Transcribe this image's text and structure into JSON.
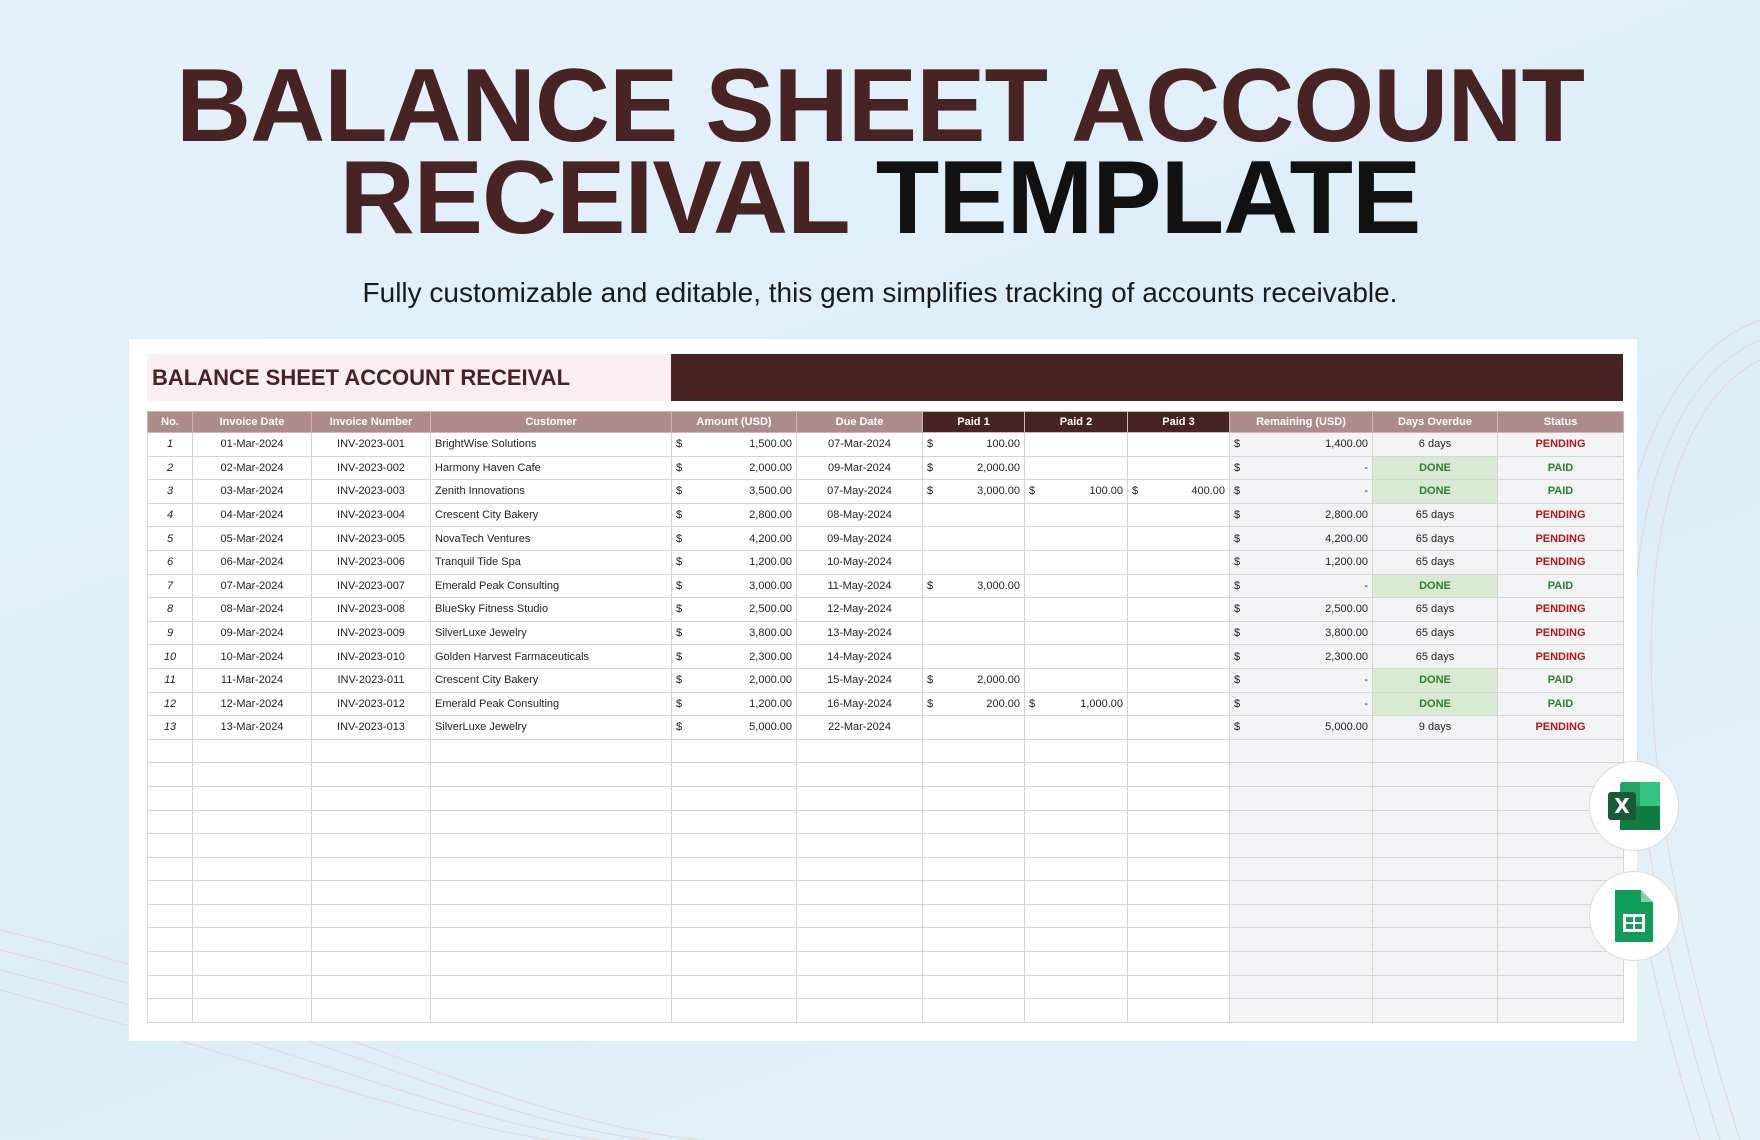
{
  "title": {
    "line1": "BALANCE SHEET ACCOUNT",
    "line2a": "RECEIVAL",
    "line2b": "TEMPLATE"
  },
  "subtitle": "Fully customizable and editable, this gem simplifies tracking of accounts receivable.",
  "sheet": {
    "title": "BALANCE SHEET ACCOUNT RECEIVAL",
    "headers": [
      "No.",
      "Invoice Date",
      "Invoice Number",
      "Customer",
      "Amount (USD)",
      "Due Date",
      "Paid 1",
      "Paid 2",
      "Paid 3",
      "Remaining (USD)",
      "Days Overdue",
      "Status"
    ],
    "currency": "$",
    "rows": [
      [
        "1",
        "01-Mar-2024",
        "INV-2023-001",
        "BrightWise Solutions",
        "1,500.00",
        "07-Mar-2024",
        "100.00",
        "",
        "",
        "1,400.00",
        "6 days",
        "PENDING"
      ],
      [
        "2",
        "02-Mar-2024",
        "INV-2023-002",
        "Harmony Haven Cafe",
        "2,000.00",
        "09-Mar-2024",
        "2,000.00",
        "",
        "",
        "-",
        "DONE",
        "PAID"
      ],
      [
        "3",
        "03-Mar-2024",
        "INV-2023-003",
        "Zenith Innovations",
        "3,500.00",
        "07-May-2024",
        "3,000.00",
        "100.00",
        "400.00",
        "-",
        "DONE",
        "PAID"
      ],
      [
        "4",
        "04-Mar-2024",
        "INV-2023-004",
        "Crescent City Bakery",
        "2,800.00",
        "08-May-2024",
        "",
        "",
        "",
        "2,800.00",
        "65 days",
        "PENDING"
      ],
      [
        "5",
        "05-Mar-2024",
        "INV-2023-005",
        "NovaTech Ventures",
        "4,200.00",
        "09-May-2024",
        "",
        "",
        "",
        "4,200.00",
        "65 days",
        "PENDING"
      ],
      [
        "6",
        "06-Mar-2024",
        "INV-2023-006",
        "Tranquil Tide Spa",
        "1,200.00",
        "10-May-2024",
        "",
        "",
        "",
        "1,200.00",
        "65 days",
        "PENDING"
      ],
      [
        "7",
        "07-Mar-2024",
        "INV-2023-007",
        "Emerald Peak Consulting",
        "3,000.00",
        "11-May-2024",
        "3,000.00",
        "",
        "",
        "-",
        "DONE",
        "PAID"
      ],
      [
        "8",
        "08-Mar-2024",
        "INV-2023-008",
        "BlueSky Fitness Studio",
        "2,500.00",
        "12-May-2024",
        "",
        "",
        "",
        "2,500.00",
        "65 days",
        "PENDING"
      ],
      [
        "9",
        "09-Mar-2024",
        "INV-2023-009",
        "SilverLuxe Jewelry",
        "3,800.00",
        "13-May-2024",
        "",
        "",
        "",
        "3,800.00",
        "65 days",
        "PENDING"
      ],
      [
        "10",
        "10-Mar-2024",
        "INV-2023-010",
        "Golden Harvest Farmaceuticals",
        "2,300.00",
        "14-May-2024",
        "",
        "",
        "",
        "2,300.00",
        "65 days",
        "PENDING"
      ],
      [
        "11",
        "11-Mar-2024",
        "INV-2023-011",
        "Crescent City Bakery",
        "2,000.00",
        "15-May-2024",
        "2,000.00",
        "",
        "",
        "-",
        "DONE",
        "PAID"
      ],
      [
        "12",
        "12-Mar-2024",
        "INV-2023-012",
        "Emerald Peak Consulting",
        "1,200.00",
        "16-May-2024",
        "200.00",
        "1,000.00",
        "",
        "-",
        "DONE",
        "PAID"
      ],
      [
        "13",
        "13-Mar-2024",
        "INV-2023-013",
        "SilverLuxe Jewelry",
        "5,000.00",
        "22-Mar-2024",
        "",
        "",
        "",
        "5,000.00",
        "9 days",
        "PENDING"
      ]
    ]
  },
  "icons": {
    "excel": "excel-icon",
    "sheets": "google-sheets-icon"
  },
  "colors": {
    "brand": "#472323",
    "header": "#ad8b8b",
    "pending": "#b0171f",
    "paid": "#2e7d32",
    "done_bg": "#d9ead3"
  }
}
